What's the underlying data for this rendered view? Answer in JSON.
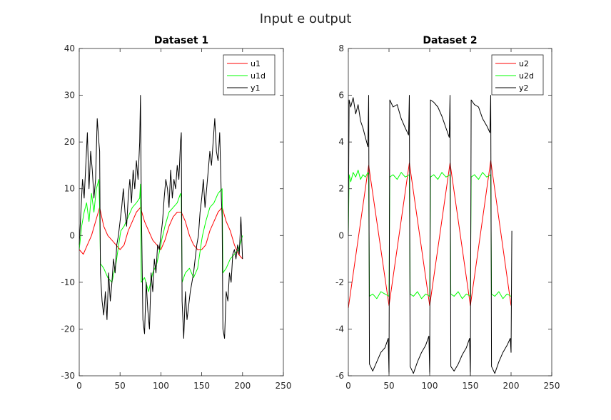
{
  "figure": {
    "title": "Input e output"
  },
  "chart_data": [
    {
      "type": "line",
      "title": "Dataset 1",
      "xlabel": "",
      "ylabel": "",
      "xlim": [
        0,
        250
      ],
      "ylim": [
        -30,
        40
      ],
      "xticks": [
        0,
        50,
        100,
        150,
        200,
        250
      ],
      "yticks": [
        -30,
        -20,
        -10,
        0,
        10,
        20,
        30,
        40
      ],
      "grid": false,
      "legend": "top-right",
      "series": [
        {
          "name": "u1",
          "color": "#ff0000",
          "x": [
            0,
            5,
            10,
            15,
            20,
            25,
            30,
            35,
            40,
            45,
            50,
            55,
            60,
            65,
            70,
            75,
            80,
            85,
            90,
            95,
            100,
            105,
            110,
            115,
            120,
            125,
            130,
            135,
            140,
            145,
            150,
            155,
            160,
            165,
            170,
            175,
            180,
            185,
            190,
            195,
            200
          ],
          "y": [
            -3,
            -4,
            -2,
            0,
            3,
            6,
            2,
            0,
            -1,
            -2,
            -3,
            -2,
            1,
            3,
            5,
            6,
            3,
            1,
            -1,
            -2,
            -3,
            -1,
            2,
            4,
            5,
            5,
            3,
            0,
            -2,
            -3,
            -3,
            -2,
            1,
            3,
            5,
            6,
            3,
            1,
            -2,
            -4,
            -5
          ]
        },
        {
          "name": "u1d",
          "color": "#00ff00",
          "x": [
            0,
            3,
            6,
            9,
            12,
            15,
            18,
            21,
            24,
            25,
            26,
            30,
            35,
            40,
            45,
            50,
            51,
            55,
            60,
            65,
            70,
            74,
            75,
            76,
            80,
            85,
            90,
            95,
            100,
            101,
            105,
            110,
            115,
            120,
            124,
            125,
            126,
            130,
            135,
            140,
            145,
            150,
            151,
            155,
            160,
            165,
            170,
            175,
            176,
            180,
            185,
            190,
            195,
            200
          ],
          "y": [
            -3,
            2,
            5,
            7,
            3,
            9,
            5,
            10,
            12,
            6,
            -6,
            -7,
            -9,
            -10,
            -6,
            0,
            1,
            2,
            4,
            6,
            7,
            8,
            11,
            -10,
            -9,
            -12,
            -8,
            -6,
            -2,
            -1,
            2,
            5,
            6,
            7,
            9,
            8,
            -10,
            -8,
            -7,
            -9,
            -7,
            -1,
            0,
            3,
            6,
            7,
            9,
            10,
            -8,
            -7,
            -5,
            -4,
            -3,
            0
          ]
        },
        {
          "name": "y1",
          "color": "#000000",
          "x": [
            0,
            2,
            4,
            6,
            8,
            10,
            12,
            14,
            16,
            18,
            20,
            22,
            24,
            25,
            26,
            28,
            30,
            32,
            34,
            36,
            38,
            40,
            42,
            44,
            46,
            48,
            50,
            52,
            54,
            56,
            58,
            60,
            62,
            64,
            66,
            68,
            70,
            72,
            74,
            75,
            76,
            78,
            80,
            82,
            84,
            86,
            88,
            90,
            92,
            94,
            96,
            98,
            100,
            102,
            104,
            106,
            108,
            110,
            112,
            114,
            116,
            118,
            120,
            122,
            124,
            125,
            126,
            128,
            130,
            132,
            134,
            136,
            138,
            140,
            142,
            144,
            146,
            148,
            150,
            152,
            154,
            156,
            158,
            160,
            162,
            164,
            166,
            168,
            170,
            172,
            174,
            175,
            176,
            178,
            180,
            182,
            184,
            186,
            188,
            190,
            192,
            194,
            196,
            198,
            200
          ],
          "y": [
            -2,
            5,
            12,
            8,
            15,
            22,
            10,
            18,
            14,
            8,
            12,
            25,
            20,
            18,
            -8,
            -14,
            -17,
            -12,
            -18,
            -8,
            -14,
            -10,
            -5,
            -8,
            -2,
            0,
            3,
            6,
            10,
            5,
            2,
            8,
            12,
            7,
            14,
            10,
            16,
            12,
            20,
            30,
            8,
            -18,
            -21,
            -10,
            -16,
            -20,
            -8,
            -12,
            -5,
            -8,
            -2,
            -3,
            0,
            3,
            8,
            12,
            10,
            6,
            14,
            8,
            12,
            10,
            15,
            12,
            20,
            22,
            -14,
            -22,
            -12,
            -18,
            -15,
            -12,
            -10,
            -8,
            -5,
            -2,
            0,
            5,
            8,
            12,
            6,
            10,
            14,
            18,
            15,
            20,
            25,
            18,
            16,
            22,
            8,
            4,
            -20,
            -22,
            -12,
            -14,
            -8,
            -10,
            -4,
            -3,
            -5,
            -2,
            -4,
            4,
            -5
          ]
        }
      ]
    },
    {
      "type": "line",
      "title": "Dataset 2",
      "xlabel": "",
      "ylabel": "",
      "xlim": [
        0,
        250
      ],
      "ylim": [
        -6,
        8
      ],
      "xticks": [
        0,
        50,
        100,
        150,
        200,
        250
      ],
      "yticks": [
        -6,
        -4,
        -2,
        0,
        2,
        4,
        6,
        8
      ],
      "grid": false,
      "legend": "top-right",
      "series": [
        {
          "name": "u2",
          "color": "#ff0000",
          "x": [
            0,
            25,
            50,
            75,
            100,
            125,
            150,
            175,
            200
          ],
          "y": [
            -3.1,
            3.0,
            -3.0,
            3.1,
            -3.0,
            3.1,
            -3.0,
            3.2,
            -3.0
          ]
        },
        {
          "name": "u2d",
          "color": "#00ff00",
          "x": [
            0,
            1,
            3,
            6,
            9,
            12,
            15,
            18,
            21,
            24,
            25,
            26,
            30,
            35,
            40,
            45,
            50,
            51,
            55,
            60,
            65,
            70,
            75,
            76,
            80,
            85,
            90,
            95,
            100,
            101,
            105,
            110,
            115,
            120,
            125,
            126,
            130,
            135,
            140,
            145,
            150,
            151,
            155,
            160,
            165,
            170,
            175,
            176,
            180,
            185,
            190,
            195,
            200
          ],
          "y": [
            0,
            2.6,
            2.3,
            2.7,
            2.5,
            2.8,
            2.4,
            2.6,
            2.5,
            2.7,
            2.6,
            -2.6,
            -2.5,
            -2.7,
            -2.4,
            -2.5,
            -2.6,
            2.5,
            2.6,
            2.4,
            2.7,
            2.5,
            2.6,
            -2.5,
            -2.6,
            -2.4,
            -2.7,
            -2.5,
            -2.6,
            2.5,
            2.6,
            2.4,
            2.7,
            2.5,
            2.6,
            -2.5,
            -2.6,
            -2.4,
            -2.7,
            -2.5,
            -2.6,
            2.5,
            2.6,
            2.4,
            2.7,
            2.5,
            2.6,
            -2.5,
            -2.6,
            -2.4,
            -2.7,
            -2.5,
            -2.6
          ]
        },
        {
          "name": "y2",
          "color": "#000000",
          "x": [
            0,
            1,
            3,
            6,
            9,
            12,
            15,
            18,
            21,
            24,
            25,
            26,
            30,
            35,
            40,
            45,
            49,
            50,
            51,
            55,
            60,
            65,
            70,
            74,
            75,
            76,
            80,
            85,
            90,
            95,
            99,
            100,
            101,
            105,
            110,
            115,
            120,
            124,
            125,
            126,
            130,
            135,
            140,
            145,
            149,
            150,
            151,
            155,
            160,
            165,
            170,
            174,
            175,
            176,
            180,
            185,
            190,
            195,
            199,
            200,
            201
          ],
          "y": [
            0,
            5.8,
            5.5,
            5.9,
            5.2,
            5.6,
            4.9,
            4.6,
            4.2,
            3.8,
            6.0,
            -5.5,
            -5.8,
            -5.4,
            -5.0,
            -4.8,
            -4.4,
            -5.9,
            5.8,
            5.5,
            5.6,
            5.0,
            4.6,
            4.3,
            6.0,
            -5.6,
            -5.9,
            -5.4,
            -5.0,
            -4.7,
            -4.3,
            -5.9,
            5.8,
            5.7,
            5.5,
            5.1,
            4.6,
            4.2,
            6.0,
            -5.6,
            -5.8,
            -5.5,
            -5.1,
            -4.8,
            -4.4,
            -6.0,
            5.8,
            5.6,
            5.5,
            5.0,
            4.7,
            4.4,
            6.0,
            -5.6,
            -5.9,
            -5.4,
            -5.0,
            -4.7,
            -4.4,
            -5.0,
            0.2
          ]
        }
      ]
    }
  ]
}
